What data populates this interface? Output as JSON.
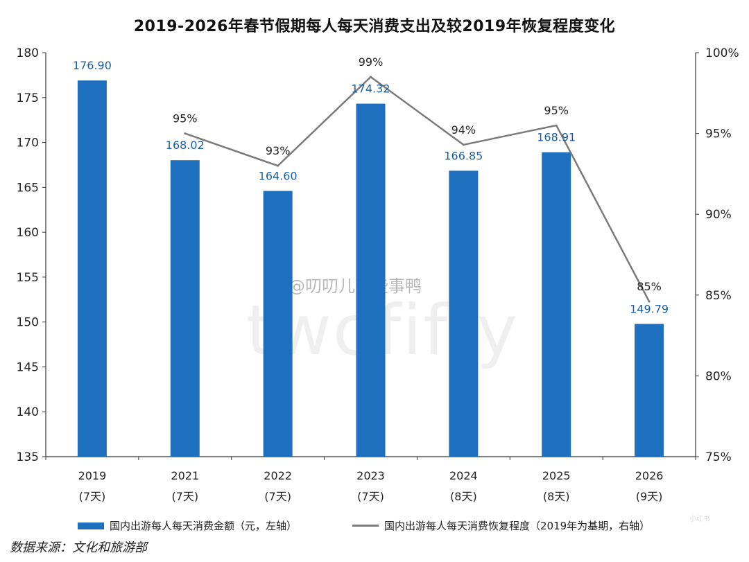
{
  "title": "2019-2026年春节假期每人每天消费支出及较2019年恢复程度变化",
  "chart_data": {
    "type": "bar+line",
    "title": "2019-2026年春节假期每人每天消费支出及较2019年恢复程度变化",
    "categories": [
      "2019",
      "2021",
      "2022",
      "2023",
      "2024",
      "2025",
      "2026"
    ],
    "category_days": [
      "(7天)",
      "(7天)",
      "(7天)",
      "(7天)",
      "(8天)",
      "(8天)",
      "(9天)"
    ],
    "series": [
      {
        "name": "国内出游每人每天消费金额（元，左轴",
        "type": "bar",
        "axis": "left",
        "values": [
          176.9,
          168.02,
          164.6,
          174.32,
          166.85,
          168.91,
          149.79
        ],
        "labels": [
          "176.90",
          "168.02",
          "164.60",
          "174.32",
          "166.85",
          "168.91",
          "149.79"
        ]
      },
      {
        "name": "国内出游每人每天消费恢复程度（2019年为基期，右轴",
        "type": "line",
        "axis": "right",
        "values": [
          null,
          95,
          93,
          98.5,
          94.3,
          95.5,
          84.6
        ],
        "labels": [
          "",
          "95%",
          "93%",
          "99%",
          "94%",
          "95%",
          "85%"
        ]
      }
    ],
    "left_axis": {
      "min": 135,
      "max": 180,
      "ticks": [
        "135",
        "140",
        "145",
        "150",
        "155",
        "160",
        "165",
        "170",
        "175",
        "180"
      ]
    },
    "right_axis": {
      "min": 75,
      "max": 100,
      "ticks": [
        "75%",
        "80%",
        "85%",
        "90%",
        "95%",
        "100%"
      ]
    },
    "colors": {
      "bar": "#1f6fbf",
      "line": "#7a7a7a",
      "bar_label": "#1b5fa3"
    }
  },
  "legend": {
    "bar_label": "国内出游每人每天消费金额（元，左轴）",
    "line_label": "国内出游每人每天消费恢复程度（2019年为基期，右轴）"
  },
  "source": "数据来源：文化和旅游部",
  "watermark": {
    "text": "twofifty",
    "handle": "@叨叨儿那些事鸭",
    "corner": "小红书"
  }
}
